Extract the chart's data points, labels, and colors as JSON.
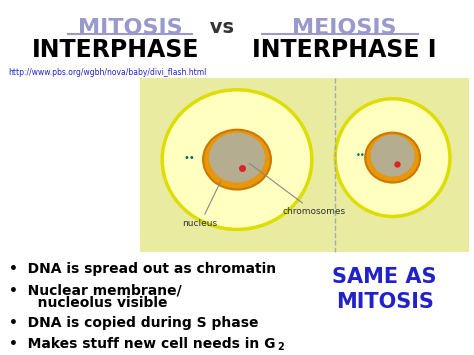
{
  "title_mitosis": "MITOSIS",
  "title_vs": " vs ",
  "title_meiosis": "MEIOSIS",
  "subtitle_left": "INTERPHASE",
  "subtitle_right": "INTERPHASE I",
  "url": "http://www.pbs.org/wgbh/nova/baby/divi_flash.html",
  "mitosis_color": "#9999cc",
  "meiosis_color": "#9999cc",
  "bullets": [
    "DNA is spread out as chromatin",
    "Nuclear membrane/",
    "   nucleolus visible",
    "DNA is copied during S phase",
    "Makes stuff new cell needs in G"
  ],
  "same_as_text": "SAME AS\nMITOSIS",
  "same_as_color": "#2222cc",
  "bg_color": "#ffffff",
  "cell_bg_left": "#e8eba0",
  "cell_bg_right": "#e8eba0",
  "outer_cell_color": "#dddd00",
  "nucleus_color": "#e8960a",
  "inner_nucleus_color": "#a0b8c8",
  "nucleus_label": "nucleus",
  "chromosomes_label": "chromosomes",
  "dashed_line_color": "#aaaaaa"
}
